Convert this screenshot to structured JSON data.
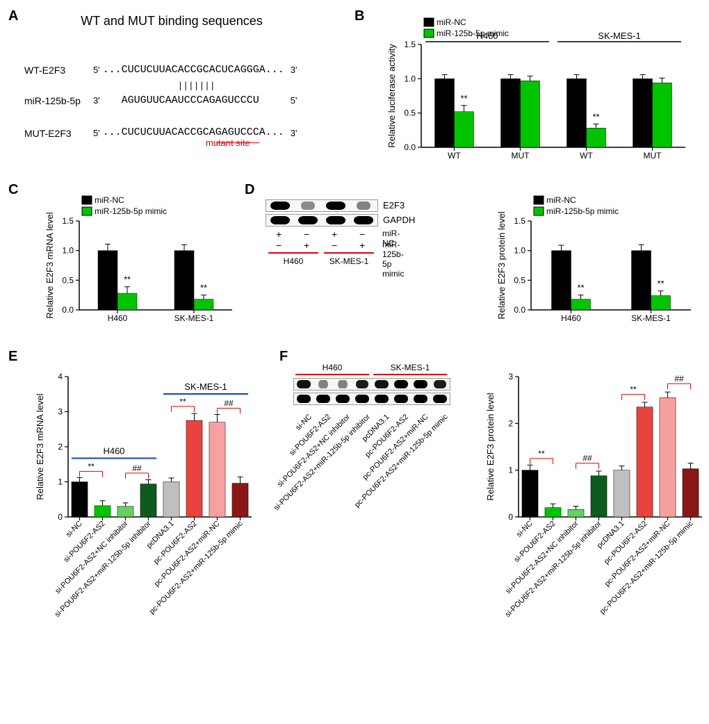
{
  "colors": {
    "black": "#000000",
    "green": "#00c400",
    "green2": "#66d060",
    "darkgreen": "#0e5a1f",
    "grey": "#bfbfbf",
    "red": "#e8443f",
    "pink": "#f7a0a2",
    "darkred": "#8a1616",
    "sig_red": "#e00000",
    "blue": "#1040d0"
  },
  "panelA": {
    "title": "WT and MUT binding sequences",
    "rows": [
      {
        "label": "WT-E2F3",
        "end5": "5'",
        "seq": "...CUCUCUUACACCGCACUCAGGGA...",
        "end3": "3'"
      },
      {
        "label": "miR-125b-5p",
        "end5": "3'",
        "seq": "   AGUGUUCAAUCCCAGAGUCCCU",
        "end3": "5'"
      },
      {
        "label": "MUT-E2F3",
        "end5": "5'",
        "seq": "...CUCUCUUACACCGCAGAGUCCCA...",
        "end3": "3'"
      }
    ],
    "pairing": "              |||||||",
    "mutant_label": "mutant site"
  },
  "panelB": {
    "ylabel": "Relative luciferase activity",
    "ymax": 1.5,
    "ytick_step": 0.5,
    "legend": [
      "miR-NC",
      "miR-125b-5p mimic"
    ],
    "legend_colors": [
      "#000000",
      "#00c400"
    ],
    "group_headers": [
      "H460",
      "SK-MES-1"
    ],
    "xlabels": [
      "WT",
      "MUT",
      "WT",
      "MUT"
    ],
    "series": [
      {
        "color": "#000000",
        "vals": [
          1.0,
          1.0,
          1.0,
          1.0
        ],
        "err": [
          0.06,
          0.06,
          0.06,
          0.06
        ]
      },
      {
        "color": "#00c400",
        "vals": [
          0.52,
          0.97,
          0.28,
          0.94
        ],
        "err": [
          0.09,
          0.07,
          0.06,
          0.07
        ]
      }
    ],
    "sigs": [
      {
        "group": 0,
        "bar": 1,
        "label": "**"
      },
      {
        "group": 2,
        "bar": 1,
        "label": "**"
      }
    ]
  },
  "panelC": {
    "ylabel": "Relative E2F3 mRNA level",
    "ymax": 1.5,
    "ytick_step": 0.5,
    "legend": [
      "miR-NC",
      "miR-125b-5p mimic"
    ],
    "legend_colors": [
      "#000000",
      "#00c400"
    ],
    "xlabels": [
      "H460",
      "SK-MES-1"
    ],
    "series": [
      {
        "color": "#000000",
        "vals": [
          1.0,
          1.0
        ],
        "err": [
          0.11,
          0.1
        ]
      },
      {
        "color": "#00c400",
        "vals": [
          0.28,
          0.18
        ],
        "err": [
          0.11,
          0.07
        ]
      }
    ],
    "sigs": [
      {
        "group": 0,
        "bar": 1,
        "label": "**"
      },
      {
        "group": 1,
        "bar": 1,
        "label": "**"
      }
    ]
  },
  "panelD": {
    "blot": {
      "proteins": [
        "E2F3",
        "GAPDH"
      ],
      "cond_rows": [
        {
          "label": "miR-NC",
          "marks": [
            "+",
            "−",
            "+",
            "−"
          ]
        },
        {
          "label": "miR-125b-5p mimic",
          "marks": [
            "−",
            "+",
            "−",
            "+"
          ]
        }
      ],
      "cell_lines": [
        "H460",
        "SK-MES-1"
      ],
      "band_intensity": {
        "E2F3": [
          1.0,
          0.25,
          1.0,
          0.3
        ],
        "GAPDH": [
          1.0,
          1.0,
          1.0,
          1.0
        ]
      }
    },
    "chart": {
      "ylabel": "Relative E2F3 protein level",
      "ymax": 1.5,
      "ytick_step": 0.5,
      "legend": [
        "miR-NC",
        "miR-125b-5p mimic"
      ],
      "legend_colors": [
        "#000000",
        "#00c400"
      ],
      "xlabels": [
        "H460",
        "SK-MES-1"
      ],
      "series": [
        {
          "color": "#000000",
          "vals": [
            1.0,
            1.0
          ],
          "err": [
            0.09,
            0.1
          ]
        },
        {
          "color": "#00c400",
          "vals": [
            0.18,
            0.24
          ],
          "err": [
            0.07,
            0.08
          ]
        }
      ],
      "sigs": [
        {
          "group": 0,
          "bar": 1,
          "label": "**"
        },
        {
          "group": 1,
          "bar": 1,
          "label": "**"
        }
      ]
    }
  },
  "panelE": {
    "ylabel": "Relative E2F3 mRNA level",
    "ymax": 4,
    "ytick_step": 1,
    "group_headers": [
      "H460",
      "SK-MES-1"
    ],
    "header_color": "#1040d0",
    "xlabels": [
      "si-NC",
      "si-POU6F2-AS2",
      "si-POU6F2-AS2+NC inhibitor",
      "si-POU6F2-AS2+miR-125b-5p inhibitor",
      "pcDNA3.1",
      "pc-POU6F2-AS2",
      "pc-POU6F2-AS2+miR-NC",
      "pc-POU6F2-AS2+miR-125b-5p mimic"
    ],
    "bar_colors": [
      "#000000",
      "#00c400",
      "#66d060",
      "#0e5a1f",
      "#bfbfbf",
      "#e8443f",
      "#f7a0a2",
      "#8a1616"
    ],
    "vals": [
      1.0,
      0.32,
      0.3,
      0.94,
      1.0,
      2.75,
      2.7,
      0.96
    ],
    "err": [
      0.12,
      0.14,
      0.1,
      0.12,
      0.11,
      0.2,
      0.22,
      0.18
    ],
    "sigs": [
      {
        "from": 0,
        "to": 1,
        "label": "**",
        "y": 1.3,
        "color": "#e00000"
      },
      {
        "from": 2,
        "to": 3,
        "label": "##",
        "y": 1.25,
        "color": "#e00000"
      },
      {
        "from": 4,
        "to": 5,
        "label": "**",
        "y": 3.15,
        "color": "#e00000"
      },
      {
        "from": 6,
        "to": 7,
        "label": "##",
        "y": 3.1,
        "color": "#e00000"
      }
    ]
  },
  "panelF": {
    "blot": {
      "cell_lines": [
        "H460",
        "SK-MES-1"
      ],
      "lane_labels": [
        "si-NC",
        "si-POU6F2-AS2",
        "si-POU6F2-AS2+NC inhibitor",
        "si-POU6F2-AS2+miR-125b-5p inhibitor",
        "pcDNA3.1",
        "pc-POU6F2-AS2",
        "pc-POU6F2-AS2+miR-NC",
        "pc-POU6F2-AS2+miR-125b-5p mimic"
      ],
      "band_rows": 2,
      "band_intensity": {
        "row1": [
          0.9,
          0.3,
          0.3,
          0.85,
          0.9,
          1.0,
          1.0,
          0.85
        ],
        "row2": [
          1.0,
          1.0,
          1.0,
          1.0,
          1.0,
          1.0,
          1.0,
          1.0
        ]
      }
    },
    "chart": {
      "ylabel": "Relative E2F3 protein level",
      "ymax": 3,
      "ytick_step": 1,
      "xlabels": [
        "si-NC",
        "si-POU6F2-AS2",
        "si-POU6F2-AS2+NC inhibitor",
        "si-POU6F2-AS2+miR-125b-5p inhibitor",
        "pcDNA3.1",
        "pc-POU6F2-AS2",
        "pc-POU6F2-AS2+miR-NC",
        "pc-POU6F2-AS2+miR-125b-5p mimic"
      ],
      "bar_colors": [
        "#000000",
        "#00c400",
        "#66d060",
        "#0e5a1f",
        "#bfbfbf",
        "#e8443f",
        "#f7a0a2",
        "#8a1616"
      ],
      "vals": [
        1.0,
        0.2,
        0.16,
        0.88,
        1.0,
        2.35,
        2.55,
        1.03
      ],
      "err": [
        0.11,
        0.08,
        0.07,
        0.1,
        0.09,
        0.1,
        0.12,
        0.12
      ],
      "sigs": [
        {
          "from": 0,
          "to": 1,
          "label": "**",
          "y": 1.25,
          "color": "#e00000"
        },
        {
          "from": 2,
          "to": 3,
          "label": "##",
          "y": 1.15,
          "color": "#e00000"
        },
        {
          "from": 4,
          "to": 5,
          "label": "**",
          "y": 2.62,
          "color": "#e00000"
        },
        {
          "from": 6,
          "to": 7,
          "label": "##",
          "y": 2.85,
          "color": "#e00000"
        }
      ]
    }
  }
}
